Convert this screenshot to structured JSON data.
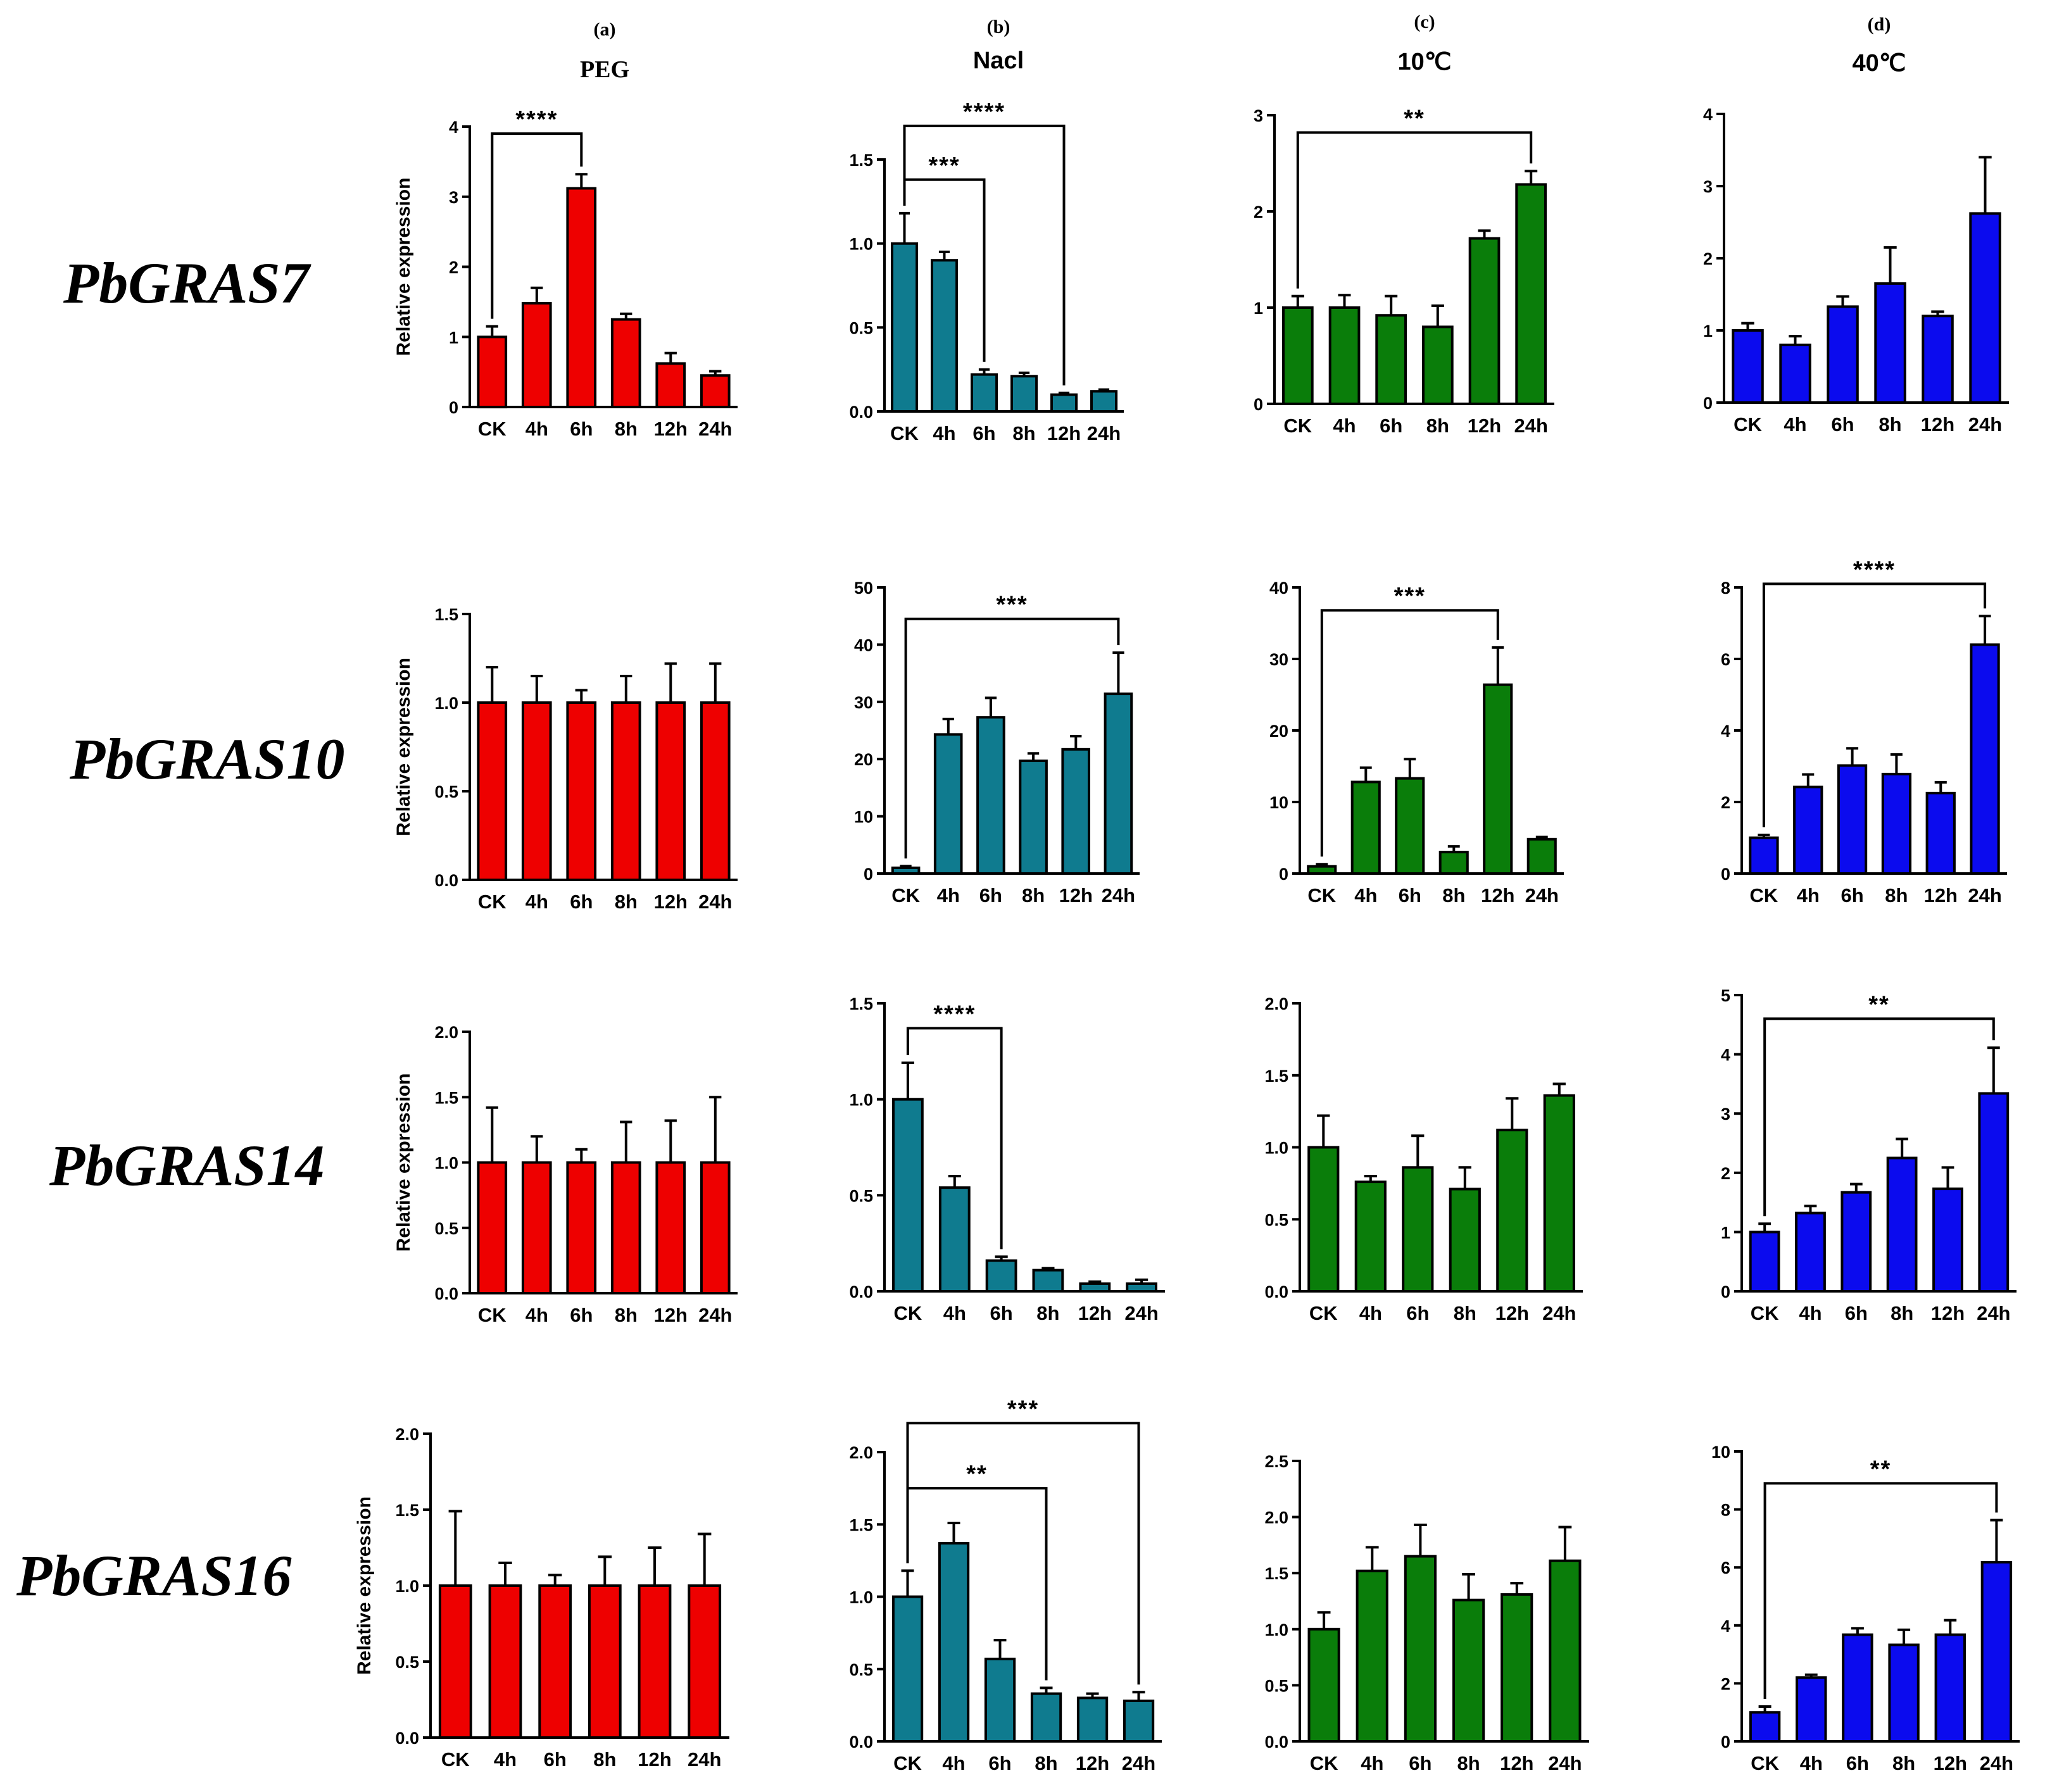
{
  "column_headers": [
    {
      "letter": "(a)",
      "title": "PEG"
    },
    {
      "letter": "(b)",
      "title": "Nacl"
    },
    {
      "letter": "(c)",
      "title": "10℃"
    },
    {
      "letter": "(d)",
      "title": "40℃"
    }
  ],
  "row_labels": [
    "PbGRAS7",
    "PbGRAS10",
    "PbGRAS14",
    "PbGRAS16"
  ],
  "colors": {
    "PEG": "#ee0000",
    "Nacl": "#0f7b8f",
    "cold": "#0a7d0a",
    "heat": "#0b0bee"
  },
  "chart_data": [
    {
      "type": "bar",
      "gene": "PbGRAS7",
      "treatment": "PEG",
      "ylabel": "Relative expression",
      "categories": [
        "CK",
        "4h",
        "6h",
        "8h",
        "12h",
        "24h"
      ],
      "values": [
        1.0,
        1.48,
        3.12,
        1.25,
        0.62,
        0.45
      ],
      "errors": [
        0.15,
        0.22,
        0.2,
        0.08,
        0.15,
        0.06
      ],
      "ylim": [
        0,
        4
      ],
      "yticks": [
        "0",
        "1",
        "2",
        "3",
        "4"
      ],
      "significance": [
        {
          "from": 0,
          "to": 2,
          "label": "****",
          "level": 3.9
        }
      ]
    },
    {
      "type": "bar",
      "gene": "PbGRAS7",
      "treatment": "Nacl",
      "ylabel": "",
      "categories": [
        "CK",
        "4h",
        "6h",
        "8h",
        "12h",
        "24h"
      ],
      "values": [
        1.0,
        0.9,
        0.22,
        0.21,
        0.1,
        0.12
      ],
      "errors": [
        0.18,
        0.05,
        0.03,
        0.02,
        0.01,
        0.01
      ],
      "ylim": [
        0,
        1.5
      ],
      "yticks": [
        "0.0",
        "0.5",
        "1.0",
        "1.5"
      ],
      "significance": [
        {
          "from": 0,
          "to": 4,
          "label": "****",
          "level": 1.7
        },
        {
          "from": 0,
          "to": 2,
          "label": "***",
          "level": 1.38
        }
      ]
    },
    {
      "type": "bar",
      "gene": "PbGRAS7",
      "treatment": "10C",
      "ylabel": "",
      "categories": [
        "CK",
        "4h",
        "6h",
        "8h",
        "12h",
        "24h"
      ],
      "values": [
        1.0,
        1.0,
        0.92,
        0.8,
        1.72,
        2.28
      ],
      "errors": [
        0.12,
        0.13,
        0.2,
        0.22,
        0.08,
        0.14
      ],
      "ylim": [
        0,
        3
      ],
      "yticks": [
        "0",
        "1",
        "2",
        "3"
      ],
      "significance": [
        {
          "from": 0,
          "to": 5,
          "label": "**",
          "level": 2.82
        }
      ]
    },
    {
      "type": "bar",
      "gene": "PbGRAS7",
      "treatment": "40C",
      "ylabel": "",
      "categories": [
        "CK",
        "4h",
        "6h",
        "8h",
        "12h",
        "24h"
      ],
      "values": [
        1.0,
        0.8,
        1.33,
        1.65,
        1.2,
        2.62
      ],
      "errors": [
        0.1,
        0.12,
        0.14,
        0.5,
        0.06,
        0.78
      ],
      "ylim": [
        0,
        4
      ],
      "yticks": [
        "0",
        "1",
        "2",
        "3",
        "4"
      ],
      "significance": []
    },
    {
      "type": "bar",
      "gene": "PbGRAS10",
      "treatment": "PEG",
      "ylabel": "Relative expression",
      "categories": [
        "CK",
        "4h",
        "6h",
        "8h",
        "12h",
        "24h"
      ],
      "values": [
        1.0,
        1.0,
        1.0,
        1.0,
        1.0,
        1.0
      ],
      "errors": [
        0.2,
        0.15,
        0.07,
        0.15,
        0.22,
        0.22
      ],
      "ylim": [
        0,
        1.5
      ],
      "yticks": [
        "0.0",
        "0.5",
        "1.0",
        "1.5"
      ],
      "significance": []
    },
    {
      "type": "bar",
      "gene": "PbGRAS10",
      "treatment": "Nacl",
      "ylabel": "",
      "categories": [
        "CK",
        "4h",
        "6h",
        "8h",
        "12h",
        "24h"
      ],
      "values": [
        1.0,
        24.3,
        27.3,
        19.7,
        21.7,
        31.4
      ],
      "errors": [
        0.3,
        2.7,
        3.4,
        1.3,
        2.3,
        7.2
      ],
      "ylim": [
        0,
        50
      ],
      "yticks": [
        "0",
        "10",
        "20",
        "30",
        "40",
        "50"
      ],
      "significance": [
        {
          "from": 0,
          "to": 5,
          "label": "***",
          "level": 44.5
        }
      ]
    },
    {
      "type": "bar",
      "gene": "PbGRAS10",
      "treatment": "10C",
      "ylabel": "",
      "categories": [
        "CK",
        "4h",
        "6h",
        "8h",
        "12h",
        "24h"
      ],
      "values": [
        1.0,
        12.8,
        13.3,
        3.0,
        26.4,
        4.8
      ],
      "errors": [
        0.3,
        2.0,
        2.7,
        0.8,
        5.2,
        0.3
      ],
      "ylim": [
        0,
        40
      ],
      "yticks": [
        "0",
        "10",
        "20",
        "30",
        "40"
      ],
      "significance": [
        {
          "from": 0,
          "to": 4,
          "label": "***",
          "level": 36.8
        }
      ]
    },
    {
      "type": "bar",
      "gene": "PbGRAS10",
      "treatment": "40C",
      "ylabel": "",
      "categories": [
        "CK",
        "4h",
        "6h",
        "8h",
        "12h",
        "24h"
      ],
      "values": [
        1.0,
        2.42,
        3.02,
        2.78,
        2.25,
        6.4
      ],
      "errors": [
        0.08,
        0.35,
        0.48,
        0.55,
        0.3,
        0.8
      ],
      "ylim": [
        0,
        8
      ],
      "yticks": [
        "0",
        "2",
        "4",
        "6",
        "8"
      ],
      "significance": [
        {
          "from": 0,
          "to": 5,
          "label": "****",
          "level": 8.1
        }
      ]
    },
    {
      "type": "bar",
      "gene": "PbGRAS14",
      "treatment": "PEG",
      "ylabel": "Relative expression",
      "categories": [
        "CK",
        "4h",
        "6h",
        "8h",
        "12h",
        "24h"
      ],
      "values": [
        1.0,
        1.0,
        1.0,
        1.0,
        1.0,
        1.0
      ],
      "errors": [
        0.42,
        0.2,
        0.1,
        0.31,
        0.32,
        0.5
      ],
      "ylim": [
        0,
        2.0
      ],
      "yticks": [
        "0.0",
        "0.5",
        "1.0",
        "1.5",
        "2.0"
      ],
      "significance": []
    },
    {
      "type": "bar",
      "gene": "PbGRAS14",
      "treatment": "Nacl",
      "ylabel": "",
      "categories": [
        "CK",
        "4h",
        "6h",
        "8h",
        "12h",
        "24h"
      ],
      "values": [
        1.0,
        0.54,
        0.16,
        0.11,
        0.04,
        0.04
      ],
      "errors": [
        0.19,
        0.06,
        0.02,
        0.01,
        0.01,
        0.02
      ],
      "ylim": [
        0,
        1.5
      ],
      "yticks": [
        "0.0",
        "0.5",
        "1.0",
        "1.5"
      ],
      "significance": [
        {
          "from": 0,
          "to": 2,
          "label": "****",
          "level": 1.37
        }
      ]
    },
    {
      "type": "bar",
      "gene": "PbGRAS14",
      "treatment": "10C",
      "ylabel": "",
      "categories": [
        "CK",
        "4h",
        "6h",
        "8h",
        "12h",
        "24h"
      ],
      "values": [
        1.0,
        0.76,
        0.86,
        0.71,
        1.12,
        1.36
      ],
      "errors": [
        0.22,
        0.04,
        0.22,
        0.15,
        0.22,
        0.08
      ],
      "ylim": [
        0,
        2.0
      ],
      "yticks": [
        "0.0",
        "0.5",
        "1.0",
        "1.5",
        "2.0"
      ],
      "significance": []
    },
    {
      "type": "bar",
      "gene": "PbGRAS14",
      "treatment": "40C",
      "ylabel": "",
      "categories": [
        "CK",
        "4h",
        "6h",
        "8h",
        "12h",
        "24h"
      ],
      "values": [
        1.0,
        1.32,
        1.67,
        2.25,
        1.73,
        3.34
      ],
      "errors": [
        0.14,
        0.12,
        0.14,
        0.32,
        0.36,
        0.77
      ],
      "ylim": [
        0,
        5
      ],
      "yticks": [
        "0",
        "1",
        "2",
        "3",
        "4",
        "5"
      ],
      "significance": [
        {
          "from": 0,
          "to": 5,
          "label": "**",
          "level": 4.6
        }
      ]
    },
    {
      "type": "bar",
      "gene": "PbGRAS16",
      "treatment": "PEG",
      "ylabel": "Relative expression",
      "categories": [
        "CK",
        "4h",
        "6h",
        "8h",
        "12h",
        "24h"
      ],
      "values": [
        1.0,
        1.0,
        1.0,
        1.0,
        1.0,
        1.0
      ],
      "errors": [
        0.49,
        0.15,
        0.07,
        0.19,
        0.25,
        0.34
      ],
      "ylim": [
        0,
        2.0
      ],
      "yticks": [
        "0.0",
        "0.5",
        "1.0",
        "1.5",
        "2.0"
      ],
      "significance": []
    },
    {
      "type": "bar",
      "gene": "PbGRAS16",
      "treatment": "Nacl",
      "ylabel": "",
      "categories": [
        "CK",
        "4h",
        "6h",
        "8h",
        "12h",
        "24h"
      ],
      "values": [
        1.0,
        1.37,
        0.57,
        0.33,
        0.3,
        0.28
      ],
      "errors": [
        0.18,
        0.14,
        0.13,
        0.04,
        0.03,
        0.06
      ],
      "ylim": [
        0,
        2.0
      ],
      "yticks": [
        "0.0",
        "0.5",
        "1.0",
        "1.5",
        "2.0"
      ],
      "significance": [
        {
          "from": 0,
          "to": 5,
          "label": "***",
          "level": 2.2
        },
        {
          "from": 0,
          "to": 3,
          "label": "**",
          "level": 1.75
        }
      ]
    },
    {
      "type": "bar",
      "gene": "PbGRAS16",
      "treatment": "10C",
      "ylabel": "",
      "categories": [
        "CK",
        "4h",
        "6h",
        "8h",
        "12h",
        "24h"
      ],
      "values": [
        1.0,
        1.52,
        1.65,
        1.26,
        1.31,
        1.61
      ],
      "errors": [
        0.15,
        0.21,
        0.28,
        0.23,
        0.1,
        0.3
      ],
      "ylim": [
        0,
        2.5
      ],
      "yticks": [
        "0.0",
        "0.5",
        "1.0",
        "1.5",
        "2.0",
        "2.5"
      ],
      "significance": []
    },
    {
      "type": "bar",
      "gene": "PbGRAS16",
      "treatment": "40C",
      "ylabel": "",
      "categories": [
        "CK",
        "4h",
        "6h",
        "8h",
        "12h",
        "24h"
      ],
      "values": [
        1.0,
        2.2,
        3.68,
        3.33,
        3.68,
        6.18
      ],
      "errors": [
        0.2,
        0.1,
        0.22,
        0.52,
        0.5,
        1.45
      ],
      "ylim": [
        0,
        10
      ],
      "yticks": [
        "0",
        "2",
        "4",
        "6",
        "8",
        "10"
      ],
      "significance": [
        {
          "from": 0,
          "to": 5,
          "label": "**",
          "level": 8.9
        }
      ]
    }
  ]
}
